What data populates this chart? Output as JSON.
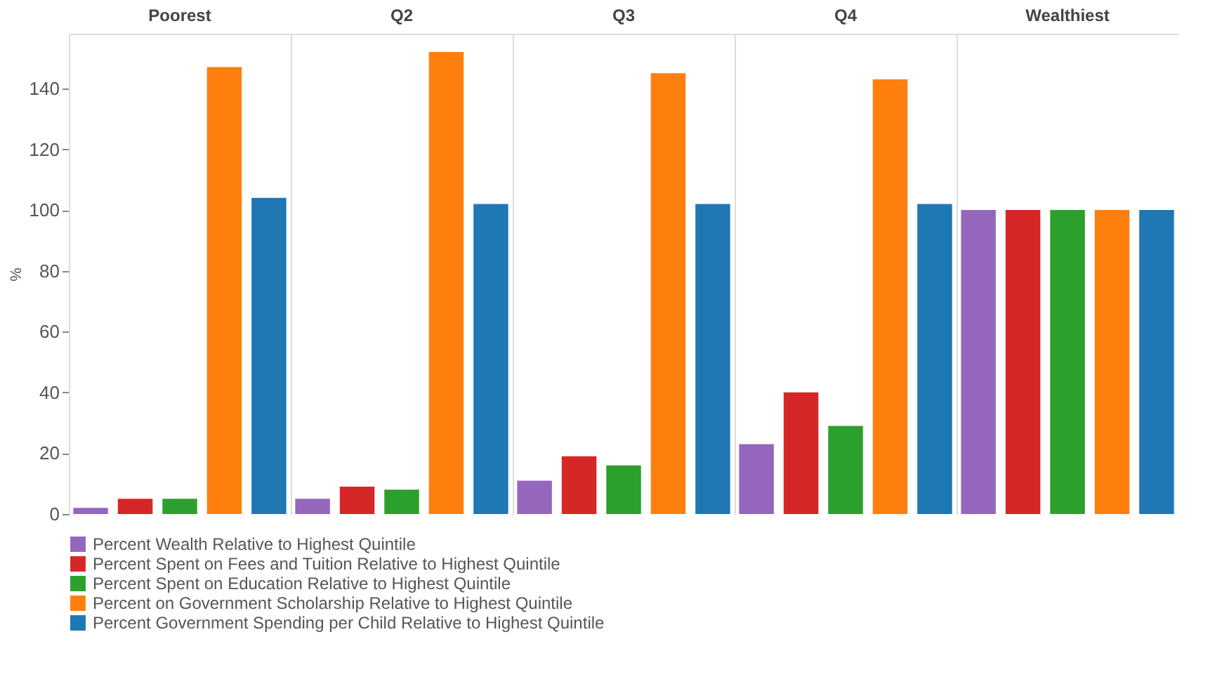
{
  "chart_data": {
    "type": "bar",
    "ylabel": "%",
    "categories": [
      "Poorest",
      "Q2",
      "Q3",
      "Q4",
      "Wealthiest"
    ],
    "series": [
      {
        "name": "Percent Wealth Relative to Highest Quintile",
        "color": "#9467bd",
        "values": [
          2,
          5,
          11,
          23,
          100
        ]
      },
      {
        "name": "Percent Spent on Fees and Tuition Relative to Highest Quintile",
        "color": "#d62728",
        "values": [
          5,
          9,
          19,
          40,
          100
        ]
      },
      {
        "name": "Percent Spent on Education Relative to Highest Quintile",
        "color": "#2ca02c",
        "values": [
          5,
          8,
          16,
          29,
          100
        ]
      },
      {
        "name": "Percent on Government Scholarship Relative to Highest Quintile",
        "color": "#ff7f0e",
        "values": [
          147,
          152,
          145,
          143,
          100
        ]
      },
      {
        "name": "Percent Government Spending per Child Relative to Highest Quintile",
        "color": "#1f77b4",
        "values": [
          104,
          102,
          102,
          102,
          100
        ]
      }
    ],
    "ylim": [
      0,
      158
    ],
    "yticks": [
      0,
      20,
      40,
      60,
      80,
      100,
      120,
      140
    ],
    "legend": "bottom"
  }
}
